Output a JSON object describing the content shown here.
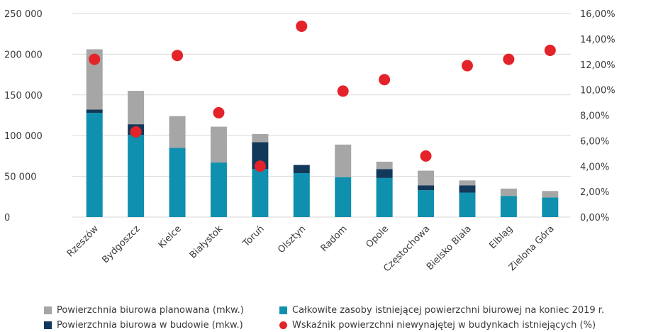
{
  "chart_data": {
    "type": "bar",
    "stacked": true,
    "categories": [
      "Rzeszów",
      "Bydgoszcz",
      "Kielce",
      "Białystok",
      "Toruń",
      "Olsztyn",
      "Radom",
      "Opole",
      "Częstochowa",
      "Bielsko Biała",
      "Elbląg",
      "Zielona Góra"
    ],
    "series": [
      {
        "name": "Całkowite zasoby istniejącej powierzchni biurowej na koniec 2019 r.",
        "axis": "left",
        "color": "#0f90ae",
        "values": [
          128000,
          101000,
          85000,
          67000,
          59000,
          54000,
          49000,
          48000,
          33000,
          30000,
          26000,
          24000
        ]
      },
      {
        "name": "Powierzchnia biurowa w budowie (mkw.)",
        "axis": "left",
        "color": "#13395a",
        "values": [
          4000,
          13000,
          0,
          0,
          33000,
          10000,
          0,
          11000,
          6000,
          9000,
          0,
          0
        ]
      },
      {
        "name": "Powierzchnia biurowa planowana (mkw.)",
        "axis": "left",
        "color": "#a6a6a6",
        "values": [
          74000,
          41000,
          39000,
          44000,
          10000,
          0,
          40000,
          9000,
          18000,
          6000,
          9000,
          8000
        ]
      },
      {
        "name": "Wskaźnik powierzchni niewynajętej w budynkach istniejących (%)",
        "axis": "right",
        "type": "scatter",
        "color": "#e4222a",
        "values": [
          12.4,
          6.7,
          12.7,
          8.2,
          4.0,
          15.0,
          9.9,
          10.8,
          4.8,
          11.9,
          12.4,
          13.1
        ]
      }
    ],
    "y_left": {
      "ylim": [
        0,
        250000
      ],
      "ticks": [
        0,
        50000,
        100000,
        150000,
        200000,
        250000
      ],
      "tick_labels": [
        "0",
        "50 000",
        "100 000",
        "150 000",
        "200 000",
        "250 000"
      ]
    },
    "y_right": {
      "ylim": [
        0,
        16
      ],
      "ticks": [
        0,
        2,
        4,
        6,
        8,
        10,
        12,
        14,
        16
      ],
      "tick_labels": [
        "0,00%",
        "2,00%",
        "4,00%",
        "6,00%",
        "8,00%",
        "10,00%",
        "12,00%",
        "14,00%",
        "16,00%"
      ]
    },
    "grid": true,
    "legend_position": "bottom"
  },
  "legend": {
    "planned": "Powierzchnia biurowa planowana (mkw.)",
    "existing": "Całkowite zasoby istniejącej powierzchni biurowej na koniec 2019 r.",
    "under_construction": "Powierzchnia biurowa w budowie (mkw.)",
    "vacancy": "Wskaźnik powierzchni niewynajętej w budynkach istniejących (%)"
  }
}
